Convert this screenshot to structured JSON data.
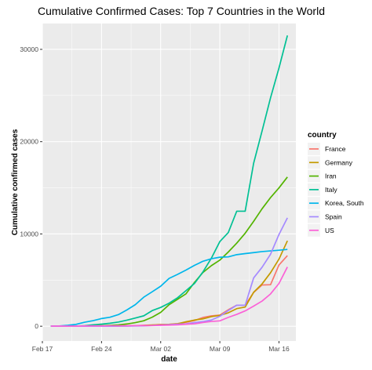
{
  "chart_data": {
    "type": "line",
    "title": "Cumulative Confirmed Cases: Top 7 Countries in the World",
    "xlabel": "date",
    "ylabel": "Cumulative confirmed cases",
    "x_type": "date",
    "xlim": [
      "2020-02-17",
      "2020-03-18"
    ],
    "ylim": [
      -1600,
      32800
    ],
    "x_ticks": [
      {
        "value": "2020-02-17",
        "label": "Feb 17"
      },
      {
        "value": "2020-02-24",
        "label": "Feb 24"
      },
      {
        "value": "2020-03-02",
        "label": "Mar 02"
      },
      {
        "value": "2020-03-09",
        "label": "Mar 09"
      },
      {
        "value": "2020-03-16",
        "label": "Mar 16"
      }
    ],
    "y_ticks": [
      0,
      10000,
      20000,
      30000
    ],
    "grid": true,
    "legend": {
      "title": "country",
      "position": "right"
    },
    "x": [
      "2020-02-18",
      "2020-02-19",
      "2020-02-20",
      "2020-02-21",
      "2020-02-22",
      "2020-02-23",
      "2020-02-24",
      "2020-02-25",
      "2020-02-26",
      "2020-02-27",
      "2020-02-28",
      "2020-02-29",
      "2020-03-01",
      "2020-03-02",
      "2020-03-03",
      "2020-03-04",
      "2020-03-05",
      "2020-03-06",
      "2020-03-07",
      "2020-03-08",
      "2020-03-09",
      "2020-03-10",
      "2020-03-11",
      "2020-03-12",
      "2020-03-13",
      "2020-03-14",
      "2020-03-15",
      "2020-03-16",
      "2020-03-17"
    ],
    "series": [
      {
        "name": "France",
        "color": "#F8766D",
        "values": [
          12,
          12,
          12,
          12,
          12,
          12,
          12,
          14,
          18,
          38,
          57,
          100,
          130,
          191,
          212,
          285,
          420,
          613,
          949,
          1126,
          1209,
          1784,
          2281,
          2281,
          3661,
          4469,
          4499,
          6633,
          7652
        ]
      },
      {
        "name": "Germany",
        "color": "#C49A00",
        "values": [
          16,
          16,
          16,
          16,
          16,
          16,
          16,
          17,
          27,
          46,
          48,
          79,
          130,
          159,
          196,
          262,
          482,
          670,
          799,
          1040,
          1176,
          1457,
          1908,
          2078,
          3675,
          4585,
          5795,
          7272,
          9257
        ]
      },
      {
        "name": "Iran",
        "color": "#53B400",
        "values": [
          0,
          0,
          5,
          18,
          28,
          43,
          61,
          95,
          139,
          245,
          388,
          593,
          978,
          1501,
          2336,
          2922,
          3513,
          4747,
          5823,
          6566,
          7161,
          8042,
          9000,
          10075,
          11364,
          12729,
          13938,
          14991,
          16169
        ]
      },
      {
        "name": "Italy",
        "color": "#00C094",
        "values": [
          3,
          3,
          3,
          20,
          62,
          155,
          229,
          322,
          453,
          655,
          888,
          1128,
          1694,
          2036,
          2502,
          3089,
          3858,
          4636,
          5883,
          7375,
          9172,
          10149,
          12462,
          12462,
          17660,
          21157,
          24747,
          27980,
          31506
        ]
      },
      {
        "name": "Korea, South",
        "color": "#00B6EB",
        "values": [
          31,
          31,
          104,
          204,
          433,
          602,
          833,
          977,
          1261,
          1766,
          2337,
          3150,
          3736,
          4335,
          5186,
          5621,
          6088,
          6593,
          7041,
          7314,
          7478,
          7513,
          7755,
          7869,
          7979,
          8086,
          8162,
          8236,
          8320
        ]
      },
      {
        "name": "Spain",
        "color": "#A58AFF",
        "values": [
          2,
          2,
          2,
          2,
          2,
          2,
          2,
          6,
          13,
          15,
          32,
          45,
          84,
          120,
          165,
          222,
          259,
          400,
          500,
          673,
          1073,
          1695,
          2277,
          2277,
          5232,
          6391,
          7798,
          9942,
          11748
        ]
      },
      {
        "name": "US",
        "color": "#FB61D7",
        "values": [
          15,
          15,
          15,
          15,
          35,
          35,
          35,
          53,
          53,
          59,
          60,
          68,
          74,
          98,
          118,
          149,
          217,
          262,
          402,
          518,
          583,
          959,
          1281,
          1663,
          2179,
          2727,
          3499,
          4632,
          6421
        ]
      }
    ]
  }
}
